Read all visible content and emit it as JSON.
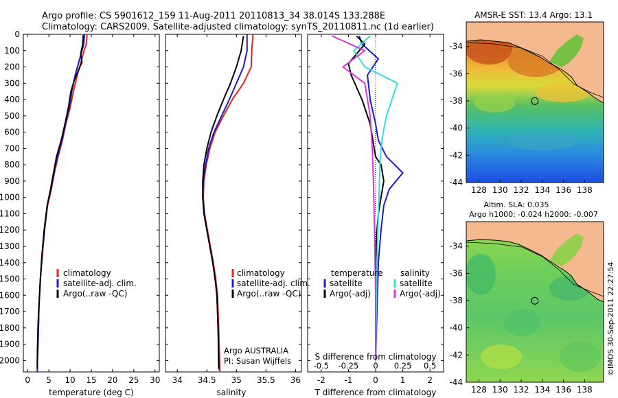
{
  "header": {
    "title_line1": "Argo profile: CS 5901612_159 11-Aug-2011 20110813_34 38.014S 133.288E",
    "title_line2": "Climatology: CARS2009. Satellite-adjusted climatology: synTS_20110811.nc (1d earlier)"
  },
  "colors": {
    "climatology": "#e8221b",
    "satellite": "#1a1acc",
    "argo": "#000000",
    "satellite_sal": "#33dddd",
    "argo_sal": "#dd33dd",
    "land": "#f4b98e"
  },
  "axes": {
    "depth_ticks": [
      "0",
      "100",
      "200",
      "300",
      "400",
      "500",
      "600",
      "700",
      "800",
      "900",
      "1000",
      "1100",
      "1200",
      "1300",
      "1400",
      "1500",
      "1600",
      "1700",
      "1800",
      "1900",
      "2000"
    ],
    "temp_ticks": [
      "0",
      "5",
      "10",
      "15",
      "20",
      "25",
      "30"
    ],
    "temp_xlabel": "temperature (deg C)",
    "sal_ticks": [
      "34",
      "34.5",
      "35",
      "35.5",
      "36"
    ],
    "sal_xlabel": "salinity",
    "diff_t_ticks": [
      "-2",
      "-1",
      "0",
      "1",
      "2"
    ],
    "diff_s_ticks": [
      "-0.5",
      "-0.25",
      "0",
      "0.25",
      "0.5"
    ],
    "diff_t_label": "T difference from climatology",
    "diff_s_label": "S difference from climatology",
    "map_y_ticks": [
      "-34",
      "-36",
      "-38",
      "-40",
      "-42",
      "-44"
    ],
    "map_x_ticks": [
      "128",
      "130",
      "132",
      "134",
      "136",
      "138"
    ]
  },
  "legends": {
    "temp": [
      "climatology",
      "satellite-adj. clim.",
      "Argo(..raw -QC)"
    ],
    "sal": [
      "climatology",
      "satellite-adj. clim.",
      "Argo(..raw -QC)"
    ],
    "diff_headers": [
      "temperature",
      "salinity"
    ],
    "diff_t": [
      "satellite",
      "Argo(-adj)"
    ],
    "diff_s": [
      "satellite",
      "Argo(-adj)"
    ]
  },
  "annotations": {
    "float_country": "Argo AUSTRALIA",
    "pi": "PI: Susan Wijffels",
    "sst_title": "AMSR-E SST: 13.4 Argo: 13.1",
    "sla_title1": "Altim. SLA: 0.035",
    "sla_title2": "Argo h1000: -0.024 h2000: -0.007",
    "credit": "©IMOS 30-Sep-2011 22:27:54"
  },
  "chart_data": [
    {
      "type": "line",
      "panel": "temperature",
      "xlabel": "temperature (deg C)",
      "ylabel": "",
      "xlim": [
        -1,
        31
      ],
      "ylim": [
        2070,
        0
      ],
      "series": [
        {
          "name": "climatology",
          "x": [
            14.0,
            13.8,
            13.3,
            11.7,
            10.8,
            10.0,
            9.0,
            8.2,
            7.2,
            6.3,
            5.6,
            4.7,
            4.0,
            3.5,
            3.0,
            2.7,
            2.6,
            2.5,
            2.4,
            2.3,
            2.3
          ],
          "y": [
            0,
            60,
            100,
            250,
            350,
            450,
            550,
            650,
            750,
            850,
            950,
            1050,
            1200,
            1350,
            1500,
            1650,
            1750,
            1850,
            1950,
            2000,
            2080
          ]
        },
        {
          "name": "satellite-adj. clim.",
          "x": [
            13.4,
            13.2,
            12.8,
            11.2,
            10.4,
            9.8,
            8.9,
            8.1,
            7.0,
            6.2,
            5.5,
            4.6,
            4.0,
            3.4,
            3.0,
            2.7,
            2.6,
            2.5,
            2.4,
            2.3,
            2.3
          ],
          "y": [
            0,
            60,
            100,
            250,
            350,
            450,
            550,
            650,
            750,
            850,
            950,
            1050,
            1200,
            1350,
            1500,
            1650,
            1750,
            1850,
            1950,
            2000,
            2080
          ]
        },
        {
          "name": "Argo(..raw -QC)",
          "x": [
            13.1,
            13.0,
            12.5,
            12.8,
            11.0,
            10.2,
            9.6,
            8.8,
            7.9,
            6.8,
            6.1,
            5.4,
            4.6,
            3.9,
            3.4,
            3.0,
            2.7,
            2.5,
            2.4,
            2.3,
            2.3
          ],
          "y": [
            5,
            60,
            120,
            170,
            280,
            350,
            450,
            550,
            650,
            750,
            850,
            950,
            1050,
            1200,
            1350,
            1500,
            1650,
            1750,
            1850,
            1950,
            2050
          ]
        }
      ]
    },
    {
      "type": "line",
      "panel": "salinity",
      "xlabel": "salinity",
      "ylabel": "",
      "xlim": [
        33.8,
        36.1
      ],
      "ylim": [
        2070,
        0
      ],
      "series": [
        {
          "name": "climatology",
          "x": [
            35.28,
            35.26,
            35.25,
            35.12,
            34.93,
            34.78,
            34.64,
            34.55,
            34.49,
            34.45,
            34.44,
            34.46,
            34.51,
            34.56,
            34.61,
            34.65,
            34.68,
            34.7,
            34.72
          ],
          "y": [
            0,
            100,
            200,
            300,
            400,
            500,
            600,
            700,
            800,
            900,
            1000,
            1100,
            1200,
            1300,
            1400,
            1500,
            1600,
            1800,
            2080
          ]
        },
        {
          "name": "satellite-adj. clim.",
          "x": [
            35.18,
            35.18,
            35.12,
            35.0,
            34.88,
            34.75,
            34.62,
            34.53,
            34.48,
            34.44,
            34.43,
            34.46,
            34.5,
            34.55,
            34.6,
            34.64,
            34.67,
            34.69,
            34.71
          ],
          "y": [
            0,
            100,
            200,
            300,
            400,
            500,
            600,
            700,
            800,
            900,
            1000,
            1100,
            1200,
            1300,
            1400,
            1500,
            1600,
            1800,
            2060
          ]
        },
        {
          "name": "Argo(..raw -QC)",
          "x": [
            35.12,
            35.08,
            35.0,
            34.9,
            34.78,
            34.67,
            34.57,
            34.5,
            34.45,
            34.43,
            34.43,
            34.45,
            34.5,
            34.55,
            34.6,
            34.64,
            34.67,
            34.69,
            34.7
          ],
          "y": [
            10,
            100,
            200,
            300,
            400,
            500,
            600,
            700,
            800,
            900,
            1000,
            1100,
            1200,
            1300,
            1400,
            1500,
            1600,
            1800,
            2050
          ]
        }
      ]
    },
    {
      "type": "line",
      "panel": "difference",
      "xlabel": "T difference from climatology",
      "x2label": "S difference from climatology",
      "xlim": [
        -2.5,
        2.5
      ],
      "ylim": [
        2070,
        0
      ],
      "series": [
        {
          "name": "temperature satellite",
          "x": [
            -0.6,
            -0.5,
            0.1,
            -0.3,
            -0.2,
            0.0,
            0.1,
            0.4,
            0.7,
            1.0,
            0.5,
            0.3,
            0.2,
            0.1,
            0.05,
            0.0
          ],
          "y": [
            10,
            60,
            150,
            250,
            400,
            550,
            650,
            750,
            800,
            850,
            950,
            1050,
            1200,
            1400,
            1700,
            2000
          ]
        },
        {
          "name": "temperature Argo(-adj)",
          "x": [
            -0.7,
            -0.4,
            -1.0,
            -0.9,
            -0.5,
            -0.2,
            -0.1,
            0.0,
            0.2,
            0.3,
            0.2,
            0.1,
            0.05,
            0.0,
            0.0,
            0.0
          ],
          "y": [
            10,
            60,
            180,
            250,
            400,
            550,
            650,
            750,
            800,
            900,
            1000,
            1100,
            1200,
            1400,
            1700,
            2000
          ]
        },
        {
          "name": "salinity satellite",
          "x": [
            -0.05,
            -0.2,
            -0.1,
            0.2,
            0.15,
            0.1,
            0.07,
            0.05,
            0.04,
            0.03,
            0.02,
            0.01,
            0.0
          ],
          "y": [
            10,
            100,
            200,
            300,
            400,
            500,
            600,
            700,
            800,
            1000,
            1200,
            1500,
            2000
          ]
        },
        {
          "name": "salinity Argo(-adj)",
          "x": [
            -0.4,
            -0.1,
            -0.3,
            -0.1,
            -0.05,
            -0.03,
            -0.02,
            -0.01,
            0.0,
            0.0
          ],
          "y": [
            10,
            100,
            200,
            300,
            500,
            700,
            900,
            1200,
            1600,
            2000
          ]
        }
      ]
    },
    {
      "type": "heatmap",
      "panel": "sst_map",
      "title": "AMSR-E SST: 13.4 Argo: 13.1",
      "xlim": [
        126.8,
        139.8
      ],
      "ylim": [
        -44,
        -32.2
      ],
      "marker": {
        "lon": 133.288,
        "lat": -38.014
      }
    },
    {
      "type": "heatmap",
      "panel": "sla_map",
      "title": "Altim. SLA: 0.035",
      "subtitle": "Argo h1000: -0.024 h2000: -0.007",
      "xlim": [
        126.8,
        139.8
      ],
      "ylim": [
        -44,
        -32.2
      ],
      "marker": {
        "lon": 133.288,
        "lat": -38.014
      }
    }
  ]
}
